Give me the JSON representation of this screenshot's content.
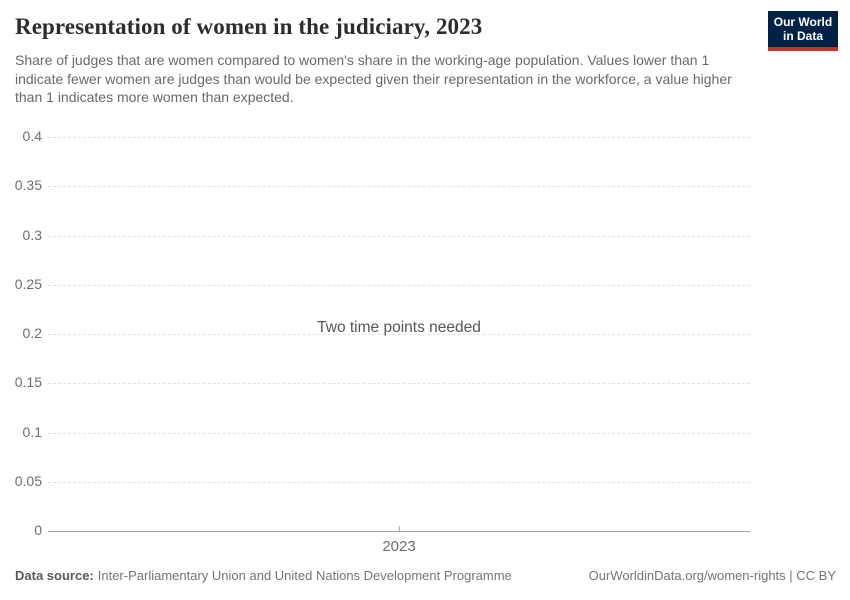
{
  "header": {
    "title": "Representation of women in the judiciary, 2023",
    "subtitle": "Share of judges that are women compared to women's share in the working-age population. Values lower than 1 indicate fewer women are judges than would be expected given their representation in the workforce, a value higher than 1 indicates more women than expected.",
    "logo": {
      "line1": "Our World",
      "line2": "in Data",
      "bg_color": "#002147",
      "stripe_color": "#c5332c"
    }
  },
  "chart_data": {
    "type": "line",
    "title": "Representation of women in the judiciary, 2023",
    "series": [],
    "placeholder_message": "Two time points needed",
    "x_ticks": [
      "2023"
    ],
    "y_ticks": [
      {
        "label": "0",
        "value": 0
      },
      {
        "label": "0.05",
        "value": 0.05
      },
      {
        "label": "0.1",
        "value": 0.1
      },
      {
        "label": "0.15",
        "value": 0.15
      },
      {
        "label": "0.2",
        "value": 0.2
      },
      {
        "label": "0.25",
        "value": 0.25
      },
      {
        "label": "0.3",
        "value": 0.3
      },
      {
        "label": "0.35",
        "value": 0.35
      },
      {
        "label": "0.4",
        "value": 0.4
      }
    ],
    "ylim": [
      0,
      0.4
    ],
    "grid": true,
    "legend": false
  },
  "footer": {
    "data_source_label": "Data source:",
    "data_source_value": "Inter-Parliamentary Union and United Nations Development Programme",
    "right_text": "OurWorldinData.org/women-rights | CC BY"
  }
}
